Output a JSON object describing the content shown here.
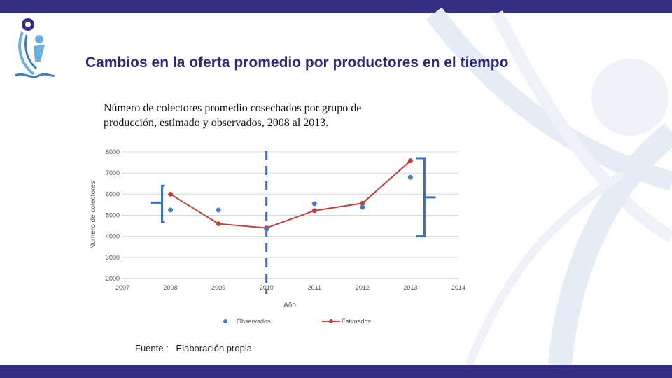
{
  "header": {
    "title": "Cambios en la oferta promedio por productores en el tiempo"
  },
  "caption": {
    "line1": "Número de colectores promedio cosechados por grupo de",
    "line2": "producción, estimado y observados, 2008 al 2013."
  },
  "source": {
    "text": "Fuente :   Elaboración propia"
  },
  "colors": {
    "bar": "#352f84",
    "observed": "#4a7dc0",
    "estimated": "#c0403e",
    "annotation": "#3a6db5"
  },
  "chart_data": {
    "type": "scatter",
    "xlabel": "Año",
    "ylabel": "Numero de colectores",
    "xlim": [
      2007,
      2014
    ],
    "ylim": [
      2000,
      8000
    ],
    "xticks": [
      2007,
      2008,
      2009,
      2010,
      2011,
      2012,
      2013,
      2014
    ],
    "yticks": [
      2000,
      3000,
      4000,
      5000,
      6000,
      7000,
      8000
    ],
    "grid": "horizontal",
    "legend": "bottom",
    "series": [
      {
        "name": "Observados",
        "style": "markers",
        "x": [
          2008,
          2009,
          2010,
          2011,
          2012,
          2013
        ],
        "y": [
          5250,
          5250,
          4350,
          5550,
          5380,
          6800
        ]
      },
      {
        "name": "Estimados",
        "style": "line+markers",
        "x": [
          2008,
          2009,
          2010,
          2011,
          2012,
          2013
        ],
        "y": [
          6000,
          4600,
          4400,
          5220,
          5570,
          7580
        ]
      }
    ],
    "annotations": {
      "vertical_dashed_line_x": 2010
    }
  }
}
